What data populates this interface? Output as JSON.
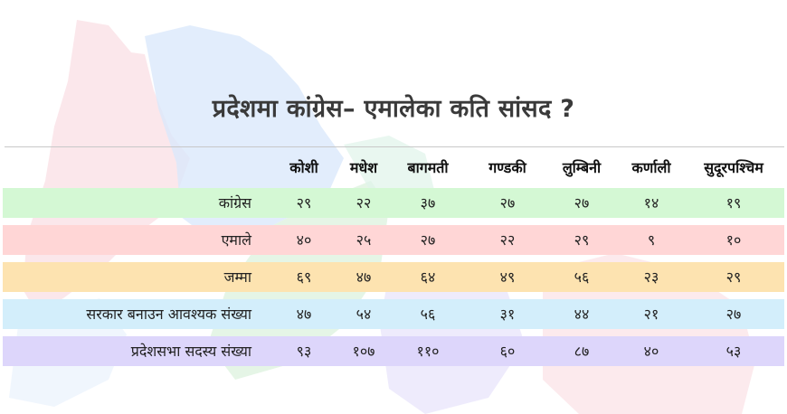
{
  "title": "प्रदेशमा कांग्रेस– एमालेका कति सांसद ?",
  "columns": [
    "कोशी",
    "मधेश",
    "बागमती",
    "गण्डकी",
    "लुम्बिनी",
    "कर्णाली",
    "सुदूरपश्चिम"
  ],
  "rows": [
    {
      "label": "कांग्रेस",
      "color": "#d4f8d4",
      "values": [
        "२९",
        "२२",
        "३७",
        "२७",
        "२७",
        "१४",
        "१९"
      ]
    },
    {
      "label": "एमाले",
      "color": "#ffd6d6",
      "values": [
        "४०",
        "२५",
        "२७",
        "२२",
        "२९",
        "९",
        "१०"
      ]
    },
    {
      "label": "जम्मा",
      "color": "#fde3b0",
      "values": [
        "६९",
        "४७",
        "६४",
        "४९",
        "५६",
        "२३",
        "२९"
      ]
    },
    {
      "label": "सरकार बनाउन आवश्यक संख्या",
      "color": "#d3eefb",
      "values": [
        "४७",
        "५४",
        "५६",
        "३१",
        "४४",
        "२१",
        "२७"
      ]
    },
    {
      "label": "प्रदेशसभा सदस्य संख्या",
      "color": "#ddd6fb",
      "values": [
        "९३",
        "१०७",
        "११०",
        "६०",
        "८७",
        "४०",
        "५३"
      ]
    }
  ]
}
